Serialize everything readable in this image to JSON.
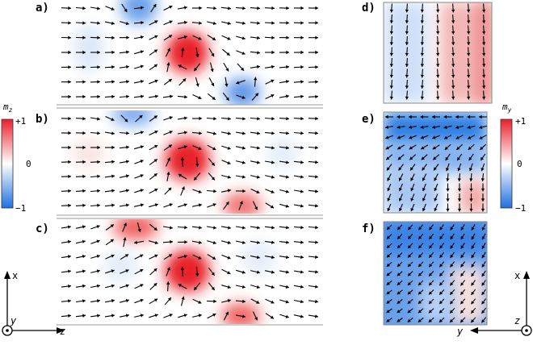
{
  "panels": {
    "a": {
      "label": "a)"
    },
    "b": {
      "label": "b)"
    },
    "c": {
      "label": "c)"
    },
    "d": {
      "label": "d)"
    },
    "e": {
      "label": "e)"
    },
    "f": {
      "label": "f)"
    }
  },
  "colorbars": {
    "left": {
      "title": "m",
      "subscript": "z",
      "ticks": [
        "+1",
        "0",
        "−1"
      ]
    },
    "right": {
      "title": "m",
      "subscript": "y",
      "ticks": [
        "+1",
        "0",
        "−1"
      ]
    }
  },
  "axes": {
    "left": {
      "vertical": "x",
      "out_of_plane": "y",
      "horizontal": "z"
    },
    "right": {
      "vertical": "x",
      "out_of_plane": "z",
      "horizontal": "y"
    }
  },
  "colors": {
    "positive": "#e8202a",
    "negative": "#1f6fe0",
    "neutral": "#ffffff",
    "arrow": "#000000"
  }
}
